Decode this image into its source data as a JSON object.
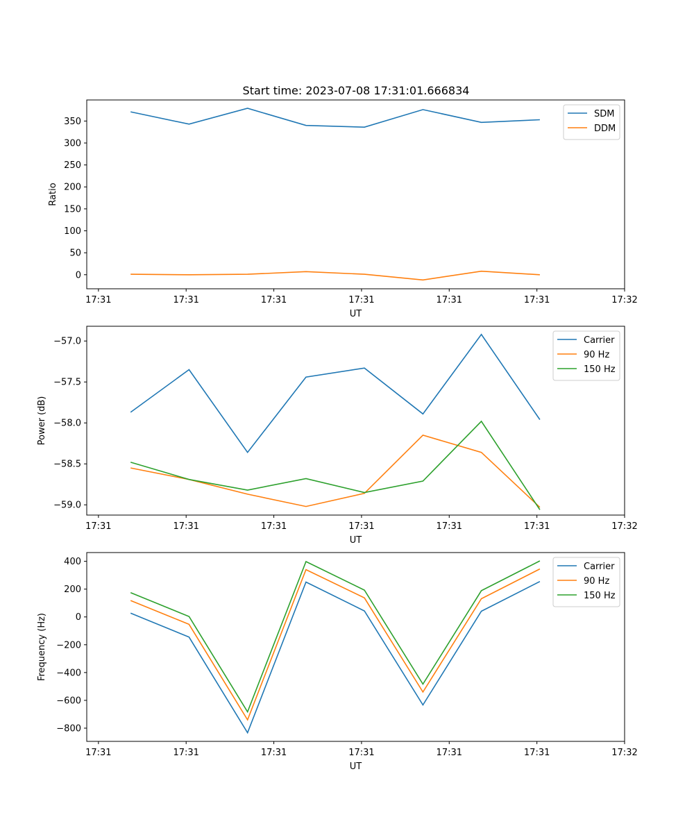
{
  "title": "Start time: 2023-07-08 17:31:01.666834",
  "chart_data": [
    {
      "type": "line",
      "title": "Start time: 2023-07-08 17:31:01.666834",
      "xlabel": "UT",
      "ylabel": "Ratio",
      "x": [
        1,
        2,
        3,
        4,
        5,
        6,
        7,
        8
      ],
      "xlim": [
        0.25,
        9.45
      ],
      "x_ticks": [
        0.45,
        1.95,
        3.45,
        4.95,
        6.45,
        7.95,
        9.45
      ],
      "x_tick_labels": [
        "17:31",
        "17:31",
        "17:31",
        "17:31",
        "17:31",
        "17:31",
        "17:32"
      ],
      "ylim": [
        -32,
        398
      ],
      "y_ticks": [
        0,
        50,
        100,
        150,
        200,
        250,
        300,
        350
      ],
      "y_tick_labels": [
        "0",
        "50",
        "100",
        "150",
        "200",
        "250",
        "300",
        "350"
      ],
      "legend_position": "top-right",
      "series": [
        {
          "name": "SDM",
          "color": "#1f77b4",
          "values": [
            371,
            343,
            379,
            340,
            336,
            376,
            347,
            353
          ]
        },
        {
          "name": "DDM",
          "color": "#ff7f0e",
          "values": [
            1,
            0,
            1,
            7,
            1,
            -12,
            8,
            0
          ]
        }
      ]
    },
    {
      "type": "line",
      "title": "",
      "xlabel": "UT",
      "ylabel": "Power (dB)",
      "x": [
        1,
        2,
        3,
        4,
        5,
        6,
        7,
        8
      ],
      "xlim": [
        0.25,
        9.45
      ],
      "x_ticks": [
        0.45,
        1.95,
        3.45,
        4.95,
        6.45,
        7.95,
        9.45
      ],
      "x_tick_labels": [
        "17:31",
        "17:31",
        "17:31",
        "17:31",
        "17:31",
        "17:31",
        "17:32"
      ],
      "ylim": [
        -59.125,
        -56.82
      ],
      "y_ticks": [
        -59.0,
        -58.5,
        -58.0,
        -57.5,
        -57.0
      ],
      "y_tick_labels": [
        "−59.0",
        "−58.5",
        "−58.0",
        "−57.5",
        "−57.0"
      ],
      "legend_position": "top-right",
      "series": [
        {
          "name": "Carrier",
          "color": "#1f77b4",
          "values": [
            -57.87,
            -57.35,
            -58.36,
            -57.44,
            -57.33,
            -57.89,
            -56.92,
            -57.96
          ]
        },
        {
          "name": "90 Hz",
          "color": "#ff7f0e",
          "values": [
            -58.55,
            -58.69,
            -58.87,
            -59.02,
            -58.86,
            -58.15,
            -58.36,
            -59.03
          ]
        },
        {
          "name": "150 Hz",
          "color": "#2ca02c",
          "values": [
            -58.48,
            -58.69,
            -58.82,
            -58.68,
            -58.85,
            -58.71,
            -57.98,
            -59.06
          ]
        }
      ]
    },
    {
      "type": "line",
      "title": "",
      "xlabel": "UT",
      "ylabel": "Frequency (Hz)",
      "x": [
        1,
        2,
        3,
        4,
        5,
        6,
        7,
        8
      ],
      "xlim": [
        0.25,
        9.45
      ],
      "x_ticks": [
        0.45,
        1.95,
        3.45,
        4.95,
        6.45,
        7.95,
        9.45
      ],
      "x_tick_labels": [
        "17:31",
        "17:31",
        "17:31",
        "17:31",
        "17:31",
        "17:31",
        "17:32"
      ],
      "ylim": [
        -895,
        463
      ],
      "y_ticks": [
        -800,
        -600,
        -400,
        -200,
        0,
        200,
        400
      ],
      "y_tick_labels": [
        "−800",
        "−600",
        "−400",
        "−200",
        "0",
        "200",
        "400"
      ],
      "legend_position": "top-right",
      "series": [
        {
          "name": "Carrier",
          "color": "#1f77b4",
          "values": [
            27,
            -145,
            -833,
            251,
            43,
            -633,
            41,
            255
          ]
        },
        {
          "name": "90 Hz",
          "color": "#ff7f0e",
          "values": [
            118,
            -53,
            -740,
            340,
            137,
            -540,
            131,
            345
          ]
        },
        {
          "name": "150 Hz",
          "color": "#2ca02c",
          "values": [
            175,
            3,
            -683,
            398,
            193,
            -483,
            189,
            403
          ]
        }
      ]
    }
  ]
}
